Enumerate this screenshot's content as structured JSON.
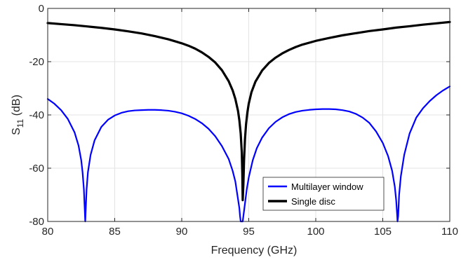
{
  "chart_data": {
    "type": "line",
    "title": "",
    "xlabel": "Frequency (GHz)",
    "ylabel": {
      "main": "S",
      "sub": "11",
      "unit": " (dB)"
    },
    "xlim": [
      80,
      110
    ],
    "ylim": [
      -80,
      0
    ],
    "xticks": [
      80,
      85,
      90,
      95,
      100,
      105,
      110
    ],
    "yticks": [
      0,
      -20,
      -40,
      -60,
      -80
    ],
    "grid": true,
    "legend_position": "bottom-right",
    "series": [
      {
        "name": "Multilayer window",
        "color": "#0000ff",
        "points": [
          [
            80,
            -34
          ],
          [
            80.5,
            -35.8
          ],
          [
            81,
            -38.2
          ],
          [
            81.5,
            -41.5
          ],
          [
            82,
            -46.5
          ],
          [
            82.3,
            -51.5
          ],
          [
            82.5,
            -57
          ],
          [
            82.6,
            -61.5
          ],
          [
            82.7,
            -68
          ],
          [
            82.75,
            -74
          ],
          [
            82.8,
            -80
          ],
          [
            82.85,
            -74
          ],
          [
            82.9,
            -68
          ],
          [
            83,
            -61.5
          ],
          [
            83.2,
            -55
          ],
          [
            83.5,
            -49.5
          ],
          [
            84,
            -44.5
          ],
          [
            84.5,
            -41.8
          ],
          [
            85,
            -40.2
          ],
          [
            85.5,
            -39.2
          ],
          [
            86,
            -38.6
          ],
          [
            86.5,
            -38.3
          ],
          [
            87,
            -38.2
          ],
          [
            87.5,
            -38.1
          ],
          [
            88,
            -38.1
          ],
          [
            88.5,
            -38.2
          ],
          [
            89,
            -38.4
          ],
          [
            89.5,
            -38.8
          ],
          [
            90,
            -39.4
          ],
          [
            90.5,
            -40.3
          ],
          [
            91,
            -41.5
          ],
          [
            91.5,
            -43.1
          ],
          [
            92,
            -45.2
          ],
          [
            92.5,
            -48
          ],
          [
            93,
            -51.7
          ],
          [
            93.5,
            -56.5
          ],
          [
            93.8,
            -61
          ],
          [
            94,
            -65
          ],
          [
            94.15,
            -70
          ],
          [
            94.3,
            -75
          ],
          [
            94.35,
            -78
          ],
          [
            94.4,
            -80
          ],
          [
            94.55,
            -80
          ],
          [
            94.6,
            -78
          ],
          [
            94.7,
            -74
          ],
          [
            94.85,
            -68
          ],
          [
            95,
            -63.5
          ],
          [
            95.3,
            -57
          ],
          [
            95.6,
            -52.5
          ],
          [
            96,
            -48.5
          ],
          [
            96.5,
            -45
          ],
          [
            97,
            -42.6
          ],
          [
            97.5,
            -40.9
          ],
          [
            98,
            -39.7
          ],
          [
            98.5,
            -38.9
          ],
          [
            99,
            -38.4
          ],
          [
            99.5,
            -38.1
          ],
          [
            100,
            -37.9
          ],
          [
            100.5,
            -37.8
          ],
          [
            101,
            -37.8
          ],
          [
            101.5,
            -37.9
          ],
          [
            102,
            -38.2
          ],
          [
            102.5,
            -38.7
          ],
          [
            103,
            -39.6
          ],
          [
            103.5,
            -41
          ],
          [
            104,
            -43
          ],
          [
            104.5,
            -46.2
          ],
          [
            105,
            -50.5
          ],
          [
            105.4,
            -55.5
          ],
          [
            105.7,
            -61
          ],
          [
            105.9,
            -67
          ],
          [
            106,
            -72
          ],
          [
            106.08,
            -78
          ],
          [
            106.1,
            -80
          ],
          [
            106.15,
            -78
          ],
          [
            106.22,
            -70
          ],
          [
            106.35,
            -63
          ],
          [
            106.6,
            -55
          ],
          [
            107,
            -47
          ],
          [
            107.5,
            -41
          ],
          [
            108,
            -37.5
          ],
          [
            108.5,
            -34.8
          ],
          [
            109,
            -32.6
          ],
          [
            109.5,
            -30.8
          ],
          [
            110,
            -29.3
          ]
        ]
      },
      {
        "name": "Single disc",
        "color": "#000000",
        "points": [
          [
            80,
            -5.5
          ],
          [
            81,
            -5.9
          ],
          [
            82,
            -6.3
          ],
          [
            83,
            -6.8
          ],
          [
            84,
            -7.3
          ],
          [
            85,
            -7.9
          ],
          [
            86,
            -8.6
          ],
          [
            87,
            -9.4
          ],
          [
            88,
            -10.4
          ],
          [
            89,
            -11.6
          ],
          [
            90,
            -13.1
          ],
          [
            90.5,
            -14
          ],
          [
            91,
            -15.1
          ],
          [
            91.5,
            -16.5
          ],
          [
            92,
            -18.2
          ],
          [
            92.5,
            -20.3
          ],
          [
            93,
            -23.2
          ],
          [
            93.5,
            -27.3
          ],
          [
            93.8,
            -30.8
          ],
          [
            94,
            -34
          ],
          [
            94.2,
            -38.5
          ],
          [
            94.3,
            -42
          ],
          [
            94.4,
            -47
          ],
          [
            94.48,
            -54
          ],
          [
            94.52,
            -62
          ],
          [
            94.55,
            -72
          ],
          [
            94.6,
            -66
          ],
          [
            94.65,
            -57
          ],
          [
            94.72,
            -49
          ],
          [
            94.8,
            -43.5
          ],
          [
            94.9,
            -39
          ],
          [
            95,
            -35.8
          ],
          [
            95.2,
            -31.5
          ],
          [
            95.5,
            -27.5
          ],
          [
            96,
            -23.3
          ],
          [
            96.5,
            -20.5
          ],
          [
            97,
            -18.5
          ],
          [
            97.5,
            -16.9
          ],
          [
            98,
            -15.6
          ],
          [
            98.5,
            -14.5
          ],
          [
            99,
            -13.6
          ],
          [
            100,
            -12.2
          ],
          [
            101,
            -11.1
          ],
          [
            102,
            -10.1
          ],
          [
            103,
            -9.3
          ],
          [
            104,
            -8.5
          ],
          [
            105,
            -7.9
          ],
          [
            106,
            -7.2
          ],
          [
            107,
            -6.7
          ],
          [
            108,
            -6.1
          ],
          [
            109,
            -5.6
          ],
          [
            110,
            -5.1
          ]
        ]
      }
    ]
  }
}
